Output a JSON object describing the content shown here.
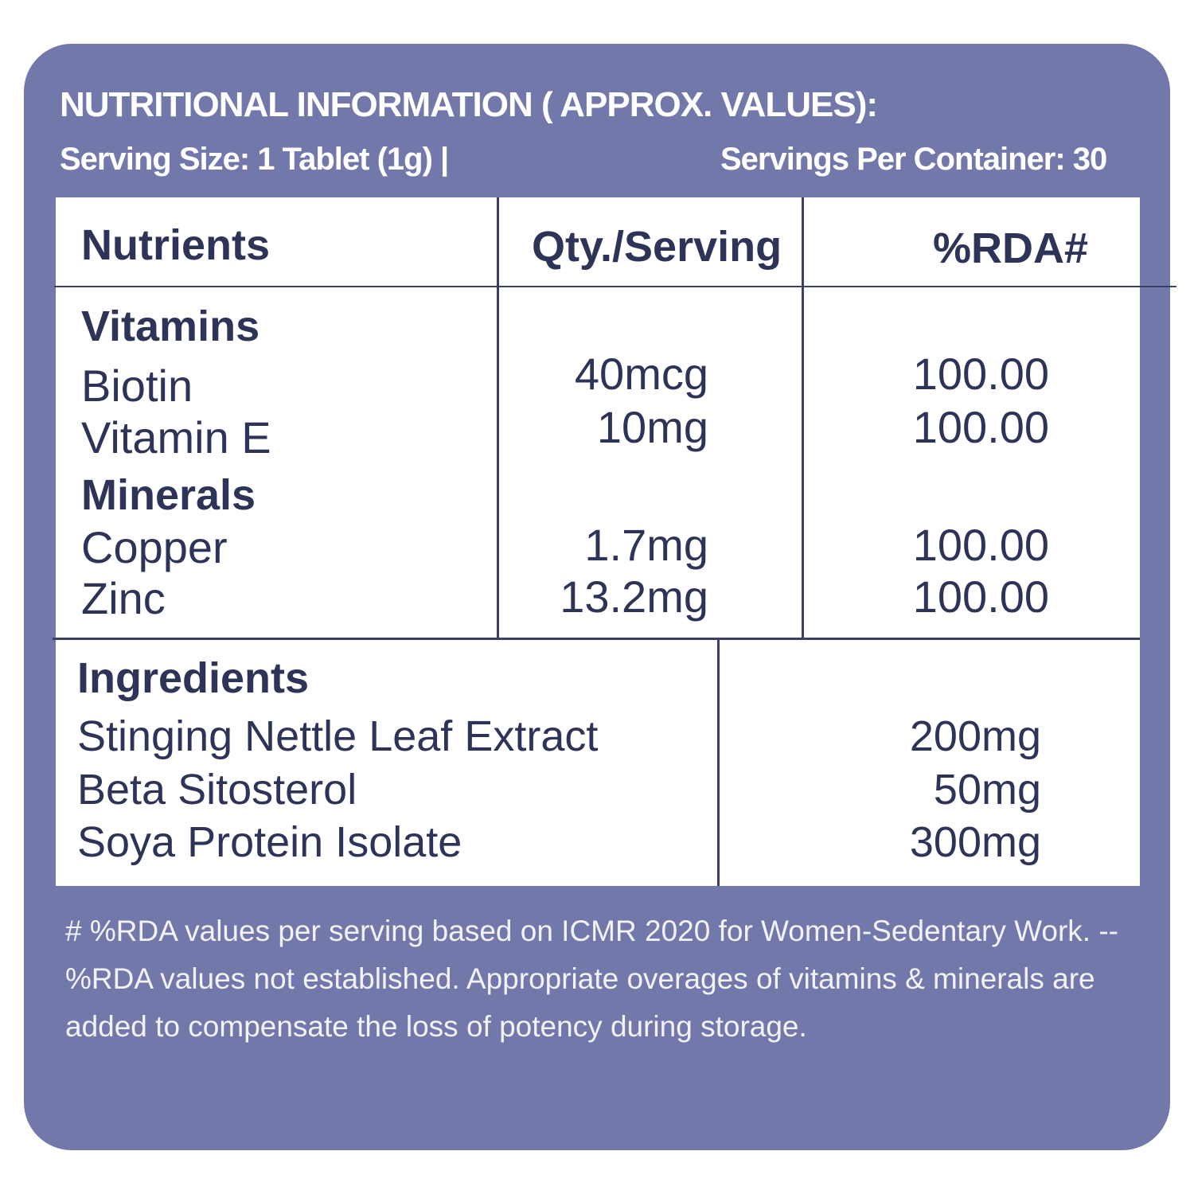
{
  "header": {
    "title": "NUTRITIONAL INFORMATION ( APPROX. VALUES):",
    "serving_size": "Serving Size: 1 Tablet (1g) |",
    "servings_per_container": "Servings Per Container: 30"
  },
  "table": {
    "columns": [
      "Nutrients",
      "Qty./Serving",
      "%RDA#"
    ],
    "groups": [
      {
        "name": "Vitamins",
        "rows": [
          [
            "Biotin",
            "40mcg",
            "100.00"
          ],
          [
            "Vitamin E",
            "10mg",
            "100.00"
          ]
        ]
      },
      {
        "name": "Minerals",
        "rows": [
          [
            "Copper",
            "1.7mg",
            "100.00"
          ],
          [
            "Zinc",
            "13.2mg",
            "100.00"
          ]
        ]
      }
    ]
  },
  "ingredients": {
    "title": "Ingredients",
    "rows": [
      [
        "Stinging Nettle Leaf Extract",
        "200mg"
      ],
      [
        "Beta Sitosterol",
        "50mg"
      ],
      [
        "Soya Protein Isolate",
        "300mg"
      ]
    ]
  },
  "footnote": "# %RDA values per serving based on ICMR 2020 for Women-Sedentary Work. --%RDA values not established. Appropriate overages of vitamins & minerals are added to compensate the loss of potency during storage."
}
